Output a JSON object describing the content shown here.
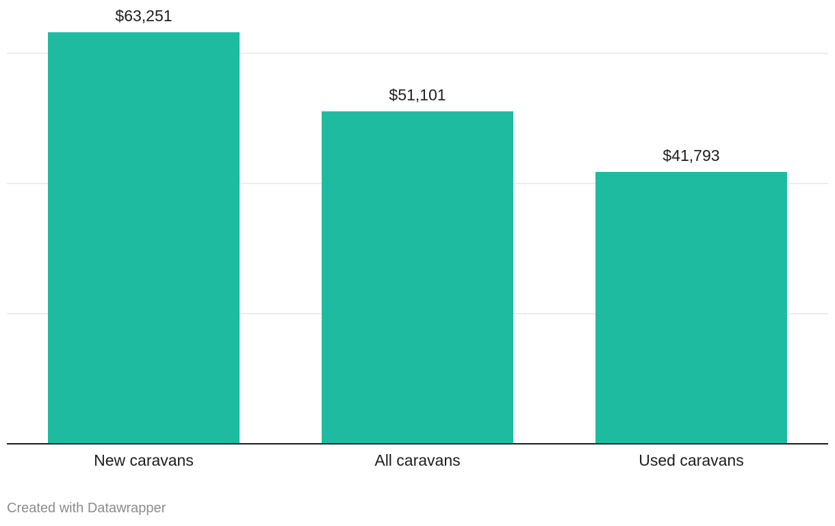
{
  "chart_data": {
    "type": "bar",
    "categories": [
      "New caravans",
      "All caravans",
      "Used caravans"
    ],
    "values": [
      63251,
      51101,
      41793
    ],
    "value_labels": [
      "$63,251",
      "$51,101",
      "$41,793"
    ],
    "ylim": [
      0,
      60000
    ],
    "gridlines": [
      20000,
      40000,
      60000
    ],
    "grid": true,
    "bar_color": "#1fbba1"
  },
  "footer": {
    "credit": "Created with Datawrapper"
  }
}
